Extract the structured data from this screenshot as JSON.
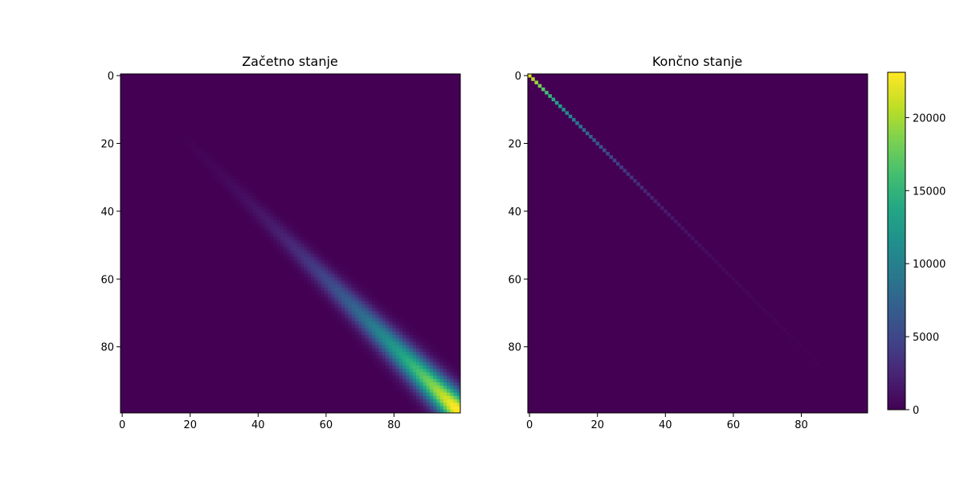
{
  "chart_data": [
    {
      "type": "heatmap",
      "title": "Začetno stanje",
      "rows": 100,
      "cols": 100,
      "xlim": [
        -0.5,
        99.5
      ],
      "ylim": [
        99.5,
        -0.5
      ],
      "xticks": [
        0,
        20,
        40,
        60,
        80
      ],
      "yticks": [
        0,
        20,
        40,
        60,
        80
      ],
      "pattern": {
        "kind": "banded-diagonal",
        "description_values": "nonzero on and near the main diagonal, magnitude grows with index, peak near index 97",
        "peak_value": 23000,
        "peak_index": 97,
        "min_visible_index": 8
      }
    },
    {
      "type": "heatmap",
      "title": "Končno stanje",
      "rows": 100,
      "cols": 100,
      "xlim": [
        -0.5,
        99.5
      ],
      "ylim": [
        99.5,
        -0.5
      ],
      "xticks": [
        0,
        20,
        40,
        60,
        80
      ],
      "yticks": [
        0,
        20,
        40,
        60,
        80
      ],
      "pattern": {
        "kind": "diagonal",
        "peak_value": 22000,
        "peak_index": 0,
        "fade_end_index": 78
      }
    }
  ],
  "colorbar": {
    "colormap": "viridis",
    "vmin": 0,
    "vmax": 23100,
    "ticks": [
      0,
      5000,
      10000,
      15000,
      20000
    ]
  }
}
